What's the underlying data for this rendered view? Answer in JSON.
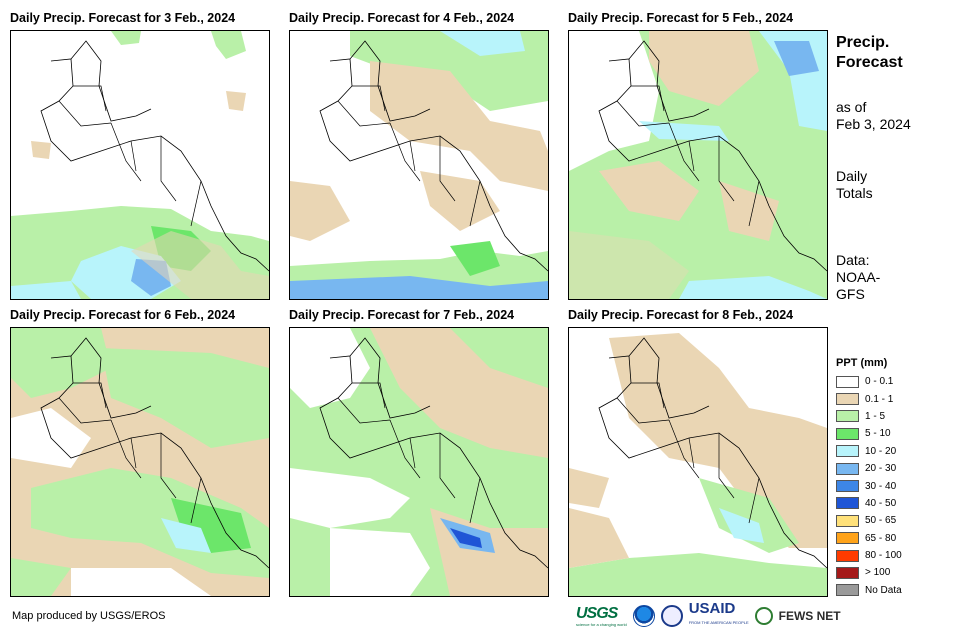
{
  "panels": [
    {
      "title": "Daily Precip. Forecast for 3 Feb., 2024"
    },
    {
      "title": "Daily Precip. Forecast for 4 Feb., 2024"
    },
    {
      "title": "Daily Precip. Forecast for 5 Feb., 2024"
    },
    {
      "title": "Daily Precip. Forecast for 6 Feb., 2024"
    },
    {
      "title": "Daily Precip. Forecast for 7 Feb., 2024"
    },
    {
      "title": "Daily Precip. Forecast for 8 Feb., 2024"
    }
  ],
  "side": {
    "title_line1": "Precip.",
    "title_line2": "Forecast",
    "asof_line1": "as of",
    "asof_line2": "Feb 3, 2024",
    "totals_line1": "Daily",
    "totals_line2": "Totals",
    "data_line1": "Data:",
    "data_line2": "NOAA-",
    "data_line3": "GFS"
  },
  "legend": {
    "title": "PPT (mm)",
    "items": [
      {
        "label": "0 - 0.1",
        "color": "#ffffff"
      },
      {
        "label": "0.1 - 1",
        "color": "#ead6b4"
      },
      {
        "label": "1 - 5",
        "color": "#b9f0a8"
      },
      {
        "label": "5 - 10",
        "color": "#6ce66a"
      },
      {
        "label": "10 - 20",
        "color": "#b8f4fb"
      },
      {
        "label": "20 - 30",
        "color": "#78b7f0"
      },
      {
        "label": "30 - 40",
        "color": "#3d86e6"
      },
      {
        "label": "40 - 50",
        "color": "#1f55d6"
      },
      {
        "label": "50 - 65",
        "color": "#ffe17a"
      },
      {
        "label": "65 - 80",
        "color": "#ffa31a"
      },
      {
        "label": "80 - 100",
        "color": "#ff3b00"
      },
      {
        "label": "> 100",
        "color": "#a51a1a"
      },
      {
        "label": "No Data",
        "color": "#9a9a9a"
      }
    ]
  },
  "credit": "Map produced by USGS/EROS",
  "logos": {
    "usgs": "USGS",
    "usgs_sub": "science for a changing world",
    "usaid": "USAID",
    "usaid_sub": "FROM THE AMERICAN PEOPLE",
    "fews": "FEWS NET"
  }
}
